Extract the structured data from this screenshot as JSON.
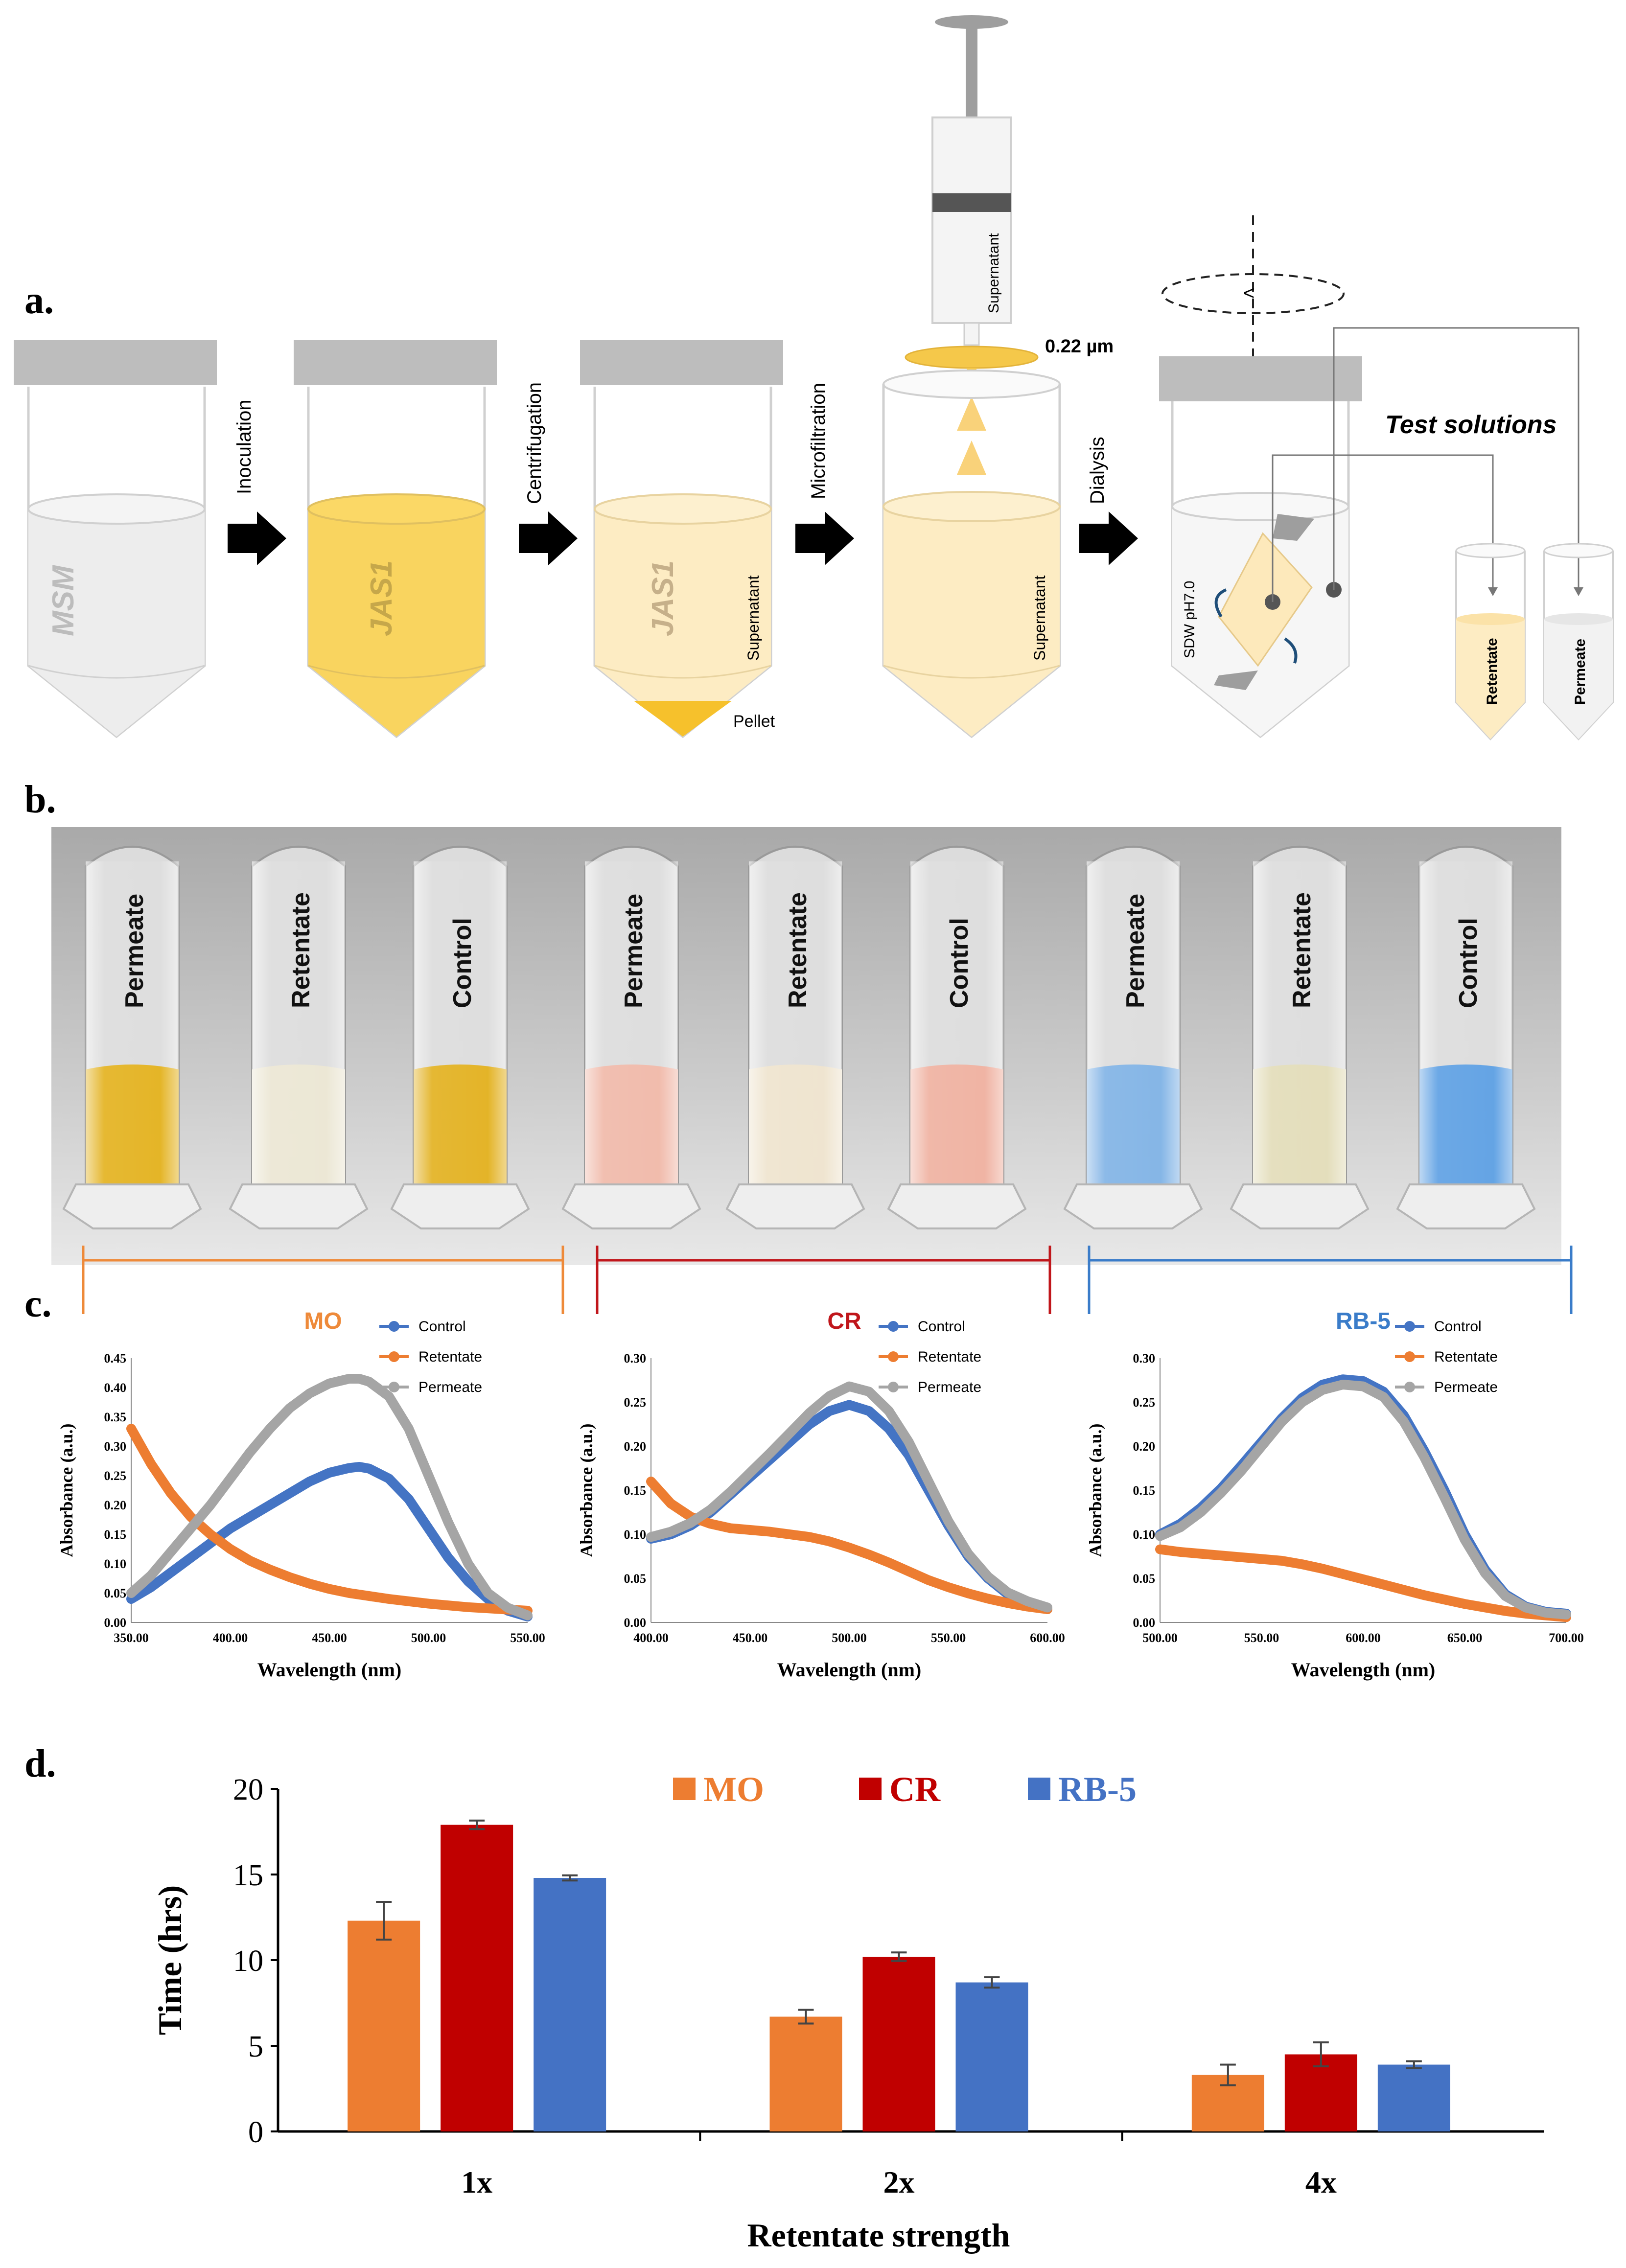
{
  "panel_labels": {
    "a": "a.",
    "b": "b.",
    "c": "c.",
    "d": "d."
  },
  "panel_a": {
    "tube_labels": {
      "msm": "MSM",
      "jas1": "JAS1",
      "jas1_pellet": "JAS1"
    },
    "steps": [
      "Inoculation",
      "Centrifugation",
      "Microfiltration",
      "Dialysis"
    ],
    "supernatant": "Supernatant",
    "pellet": "Pellet",
    "filter": "0.22 µm",
    "sdw": "SDW pH7.0",
    "test_solutions": "Test solutions",
    "retentate": "Retentate",
    "permeate": "Permeate"
  },
  "panel_b": {
    "vials": [
      {
        "label": "Permeate",
        "dye": "MO",
        "color": "#e3b11c"
      },
      {
        "label": "Retentate",
        "dye": "MO",
        "color": "#ebe6d3"
      },
      {
        "label": "Control",
        "dye": "MO",
        "color": "#e2b01d"
      },
      {
        "label": "Permeate",
        "dye": "CR",
        "color": "#f0b8a8"
      },
      {
        "label": "Retentate",
        "dye": "CR",
        "color": "#eee3cd"
      },
      {
        "label": "Control",
        "dye": "CR",
        "color": "#efb09f"
      },
      {
        "label": "Permeate",
        "dye": "RB-5",
        "color": "#7fb2e5"
      },
      {
        "label": "Retentate",
        "dye": "RB-5",
        "color": "#e2dcb8"
      },
      {
        "label": "Control",
        "dye": "RB-5",
        "color": "#5c9fe3"
      }
    ],
    "groups": [
      {
        "name": "MO",
        "color": "#ee8a3a"
      },
      {
        "name": "CR",
        "color": "#c0161b"
      },
      {
        "name": "RB-5",
        "color": "#3a7cc9"
      }
    ]
  },
  "chart_data": [
    {
      "type": "line",
      "title": "MO",
      "title_color": "#ee8a3a",
      "xlabel": "Wavelength (nm)",
      "ylabel": "Absorbance (a.u.)",
      "xlim": [
        350,
        550
      ],
      "ylim": [
        0,
        0.45
      ],
      "xticks": [
        "350.00",
        "400.00",
        "450.00",
        "500.00",
        "550.00"
      ],
      "yticks": [
        "0.00",
        "0.05",
        "0.10",
        "0.15",
        "0.20",
        "0.25",
        "0.30",
        "0.35",
        "0.40",
        "0.45"
      ],
      "series": [
        {
          "name": "Control",
          "color": "#4474c4",
          "x": [
            350,
            360,
            370,
            380,
            390,
            400,
            410,
            420,
            430,
            440,
            450,
            460,
            465,
            470,
            480,
            490,
            500,
            510,
            520,
            530,
            540,
            550
          ],
          "y": [
            0.04,
            0.06,
            0.085,
            0.11,
            0.135,
            0.16,
            0.18,
            0.2,
            0.22,
            0.24,
            0.255,
            0.263,
            0.265,
            0.262,
            0.245,
            0.21,
            0.16,
            0.11,
            0.07,
            0.04,
            0.02,
            0.01
          ]
        },
        {
          "name": "Retentate",
          "color": "#ed7d31",
          "x": [
            350,
            360,
            370,
            380,
            390,
            400,
            410,
            420,
            430,
            440,
            450,
            460,
            470,
            480,
            490,
            500,
            510,
            520,
            530,
            540,
            550
          ],
          "y": [
            0.33,
            0.27,
            0.22,
            0.18,
            0.15,
            0.125,
            0.105,
            0.09,
            0.077,
            0.066,
            0.057,
            0.05,
            0.045,
            0.04,
            0.036,
            0.032,
            0.029,
            0.026,
            0.024,
            0.022,
            0.02
          ]
        },
        {
          "name": "Permeate",
          "color": "#a5a5a5",
          "x": [
            350,
            360,
            370,
            380,
            390,
            400,
            410,
            420,
            430,
            440,
            450,
            460,
            465,
            470,
            480,
            490,
            500,
            510,
            520,
            530,
            540,
            550
          ],
          "y": [
            0.05,
            0.08,
            0.12,
            0.16,
            0.2,
            0.245,
            0.29,
            0.33,
            0.365,
            0.39,
            0.407,
            0.415,
            0.415,
            0.41,
            0.385,
            0.33,
            0.25,
            0.17,
            0.1,
            0.05,
            0.025,
            0.012
          ]
        }
      ]
    },
    {
      "type": "line",
      "title": "CR",
      "title_color": "#c0161b",
      "xlabel": "Wavelength (nm)",
      "ylabel": "Absorbance (a.u.)",
      "xlim": [
        400,
        600
      ],
      "ylim": [
        0,
        0.3
      ],
      "xticks": [
        "400.00",
        "450.00",
        "500.00",
        "550.00",
        "600.00"
      ],
      "yticks": [
        "0.00",
        "0.05",
        "0.10",
        "0.15",
        "0.20",
        "0.25",
        "0.30"
      ],
      "series": [
        {
          "name": "Control",
          "color": "#4474c4",
          "x": [
            400,
            410,
            420,
            430,
            440,
            450,
            460,
            470,
            480,
            490,
            500,
            510,
            520,
            530,
            540,
            550,
            560,
            570,
            580,
            590,
            600
          ],
          "y": [
            0.095,
            0.1,
            0.11,
            0.125,
            0.145,
            0.165,
            0.185,
            0.205,
            0.225,
            0.24,
            0.247,
            0.24,
            0.22,
            0.19,
            0.15,
            0.11,
            0.075,
            0.05,
            0.032,
            0.022,
            0.015
          ]
        },
        {
          "name": "Retentate",
          "color": "#ed7d31",
          "x": [
            400,
            410,
            420,
            430,
            440,
            450,
            460,
            470,
            480,
            490,
            500,
            510,
            520,
            530,
            540,
            550,
            560,
            570,
            580,
            590,
            600
          ],
          "y": [
            0.16,
            0.135,
            0.12,
            0.112,
            0.107,
            0.105,
            0.103,
            0.1,
            0.097,
            0.092,
            0.085,
            0.077,
            0.068,
            0.058,
            0.048,
            0.04,
            0.033,
            0.027,
            0.022,
            0.018,
            0.015
          ]
        },
        {
          "name": "Permeate",
          "color": "#a5a5a5",
          "x": [
            400,
            410,
            420,
            430,
            440,
            450,
            460,
            470,
            480,
            490,
            500,
            510,
            520,
            530,
            540,
            550,
            560,
            570,
            580,
            590,
            600
          ],
          "y": [
            0.097,
            0.103,
            0.113,
            0.128,
            0.148,
            0.17,
            0.192,
            0.215,
            0.238,
            0.257,
            0.268,
            0.262,
            0.24,
            0.205,
            0.16,
            0.115,
            0.078,
            0.052,
            0.034,
            0.024,
            0.017
          ]
        }
      ]
    },
    {
      "type": "line",
      "title": "RB-5",
      "title_color": "#3a7cc9",
      "xlabel": "Wavelength (nm)",
      "ylabel": "Absorbance (a.u.)",
      "xlim": [
        500,
        700
      ],
      "ylim": [
        0,
        0.3
      ],
      "xticks": [
        "500.00",
        "550.00",
        "600.00",
        "650.00",
        "700.00"
      ],
      "yticks": [
        "0.00",
        "0.05",
        "0.10",
        "0.15",
        "0.20",
        "0.25",
        "0.30"
      ],
      "series": [
        {
          "name": "Control",
          "color": "#4474c4",
          "x": [
            500,
            510,
            520,
            530,
            540,
            550,
            560,
            570,
            580,
            590,
            600,
            610,
            620,
            630,
            640,
            650,
            660,
            670,
            680,
            690,
            700
          ],
          "y": [
            0.1,
            0.112,
            0.13,
            0.152,
            0.178,
            0.205,
            0.232,
            0.255,
            0.27,
            0.276,
            0.274,
            0.262,
            0.235,
            0.195,
            0.15,
            0.1,
            0.06,
            0.032,
            0.018,
            0.012,
            0.01
          ]
        },
        {
          "name": "Retentate",
          "color": "#ed7d31",
          "x": [
            500,
            510,
            520,
            530,
            540,
            550,
            560,
            570,
            580,
            590,
            600,
            610,
            620,
            630,
            640,
            650,
            660,
            670,
            680,
            690,
            700
          ],
          "y": [
            0.083,
            0.08,
            0.078,
            0.076,
            0.074,
            0.072,
            0.07,
            0.066,
            0.061,
            0.055,
            0.049,
            0.043,
            0.037,
            0.031,
            0.026,
            0.021,
            0.017,
            0.013,
            0.01,
            0.008,
            0.006
          ]
        },
        {
          "name": "Permeate",
          "color": "#a5a5a5",
          "x": [
            500,
            510,
            520,
            530,
            540,
            550,
            560,
            570,
            580,
            590,
            600,
            610,
            620,
            630,
            640,
            650,
            660,
            670,
            680,
            690,
            700
          ],
          "y": [
            0.098,
            0.108,
            0.125,
            0.147,
            0.172,
            0.2,
            0.228,
            0.25,
            0.264,
            0.27,
            0.268,
            0.256,
            0.228,
            0.188,
            0.142,
            0.094,
            0.056,
            0.03,
            0.017,
            0.011,
            0.009
          ]
        }
      ]
    },
    {
      "type": "bar",
      "xlabel": "Retentate strength",
      "ylabel": "Time (hrs)",
      "ylim": [
        0,
        20
      ],
      "yticks": [
        "0",
        "5",
        "10",
        "15",
        "20"
      ],
      "categories": [
        "1x",
        "2x",
        "4x"
      ],
      "series": [
        {
          "name": "MO",
          "color": "#ed7d31",
          "values": [
            12.3,
            6.7,
            3.3
          ],
          "errors": [
            1.1,
            0.4,
            0.6
          ]
        },
        {
          "name": "CR",
          "color": "#c00000",
          "values": [
            17.9,
            10.2,
            4.5
          ],
          "errors": [
            0.25,
            0.25,
            0.7
          ]
        },
        {
          "name": "RB-5",
          "color": "#4472c4",
          "values": [
            14.8,
            8.7,
            3.9
          ],
          "errors": [
            0.15,
            0.3,
            0.2
          ]
        }
      ]
    }
  ]
}
